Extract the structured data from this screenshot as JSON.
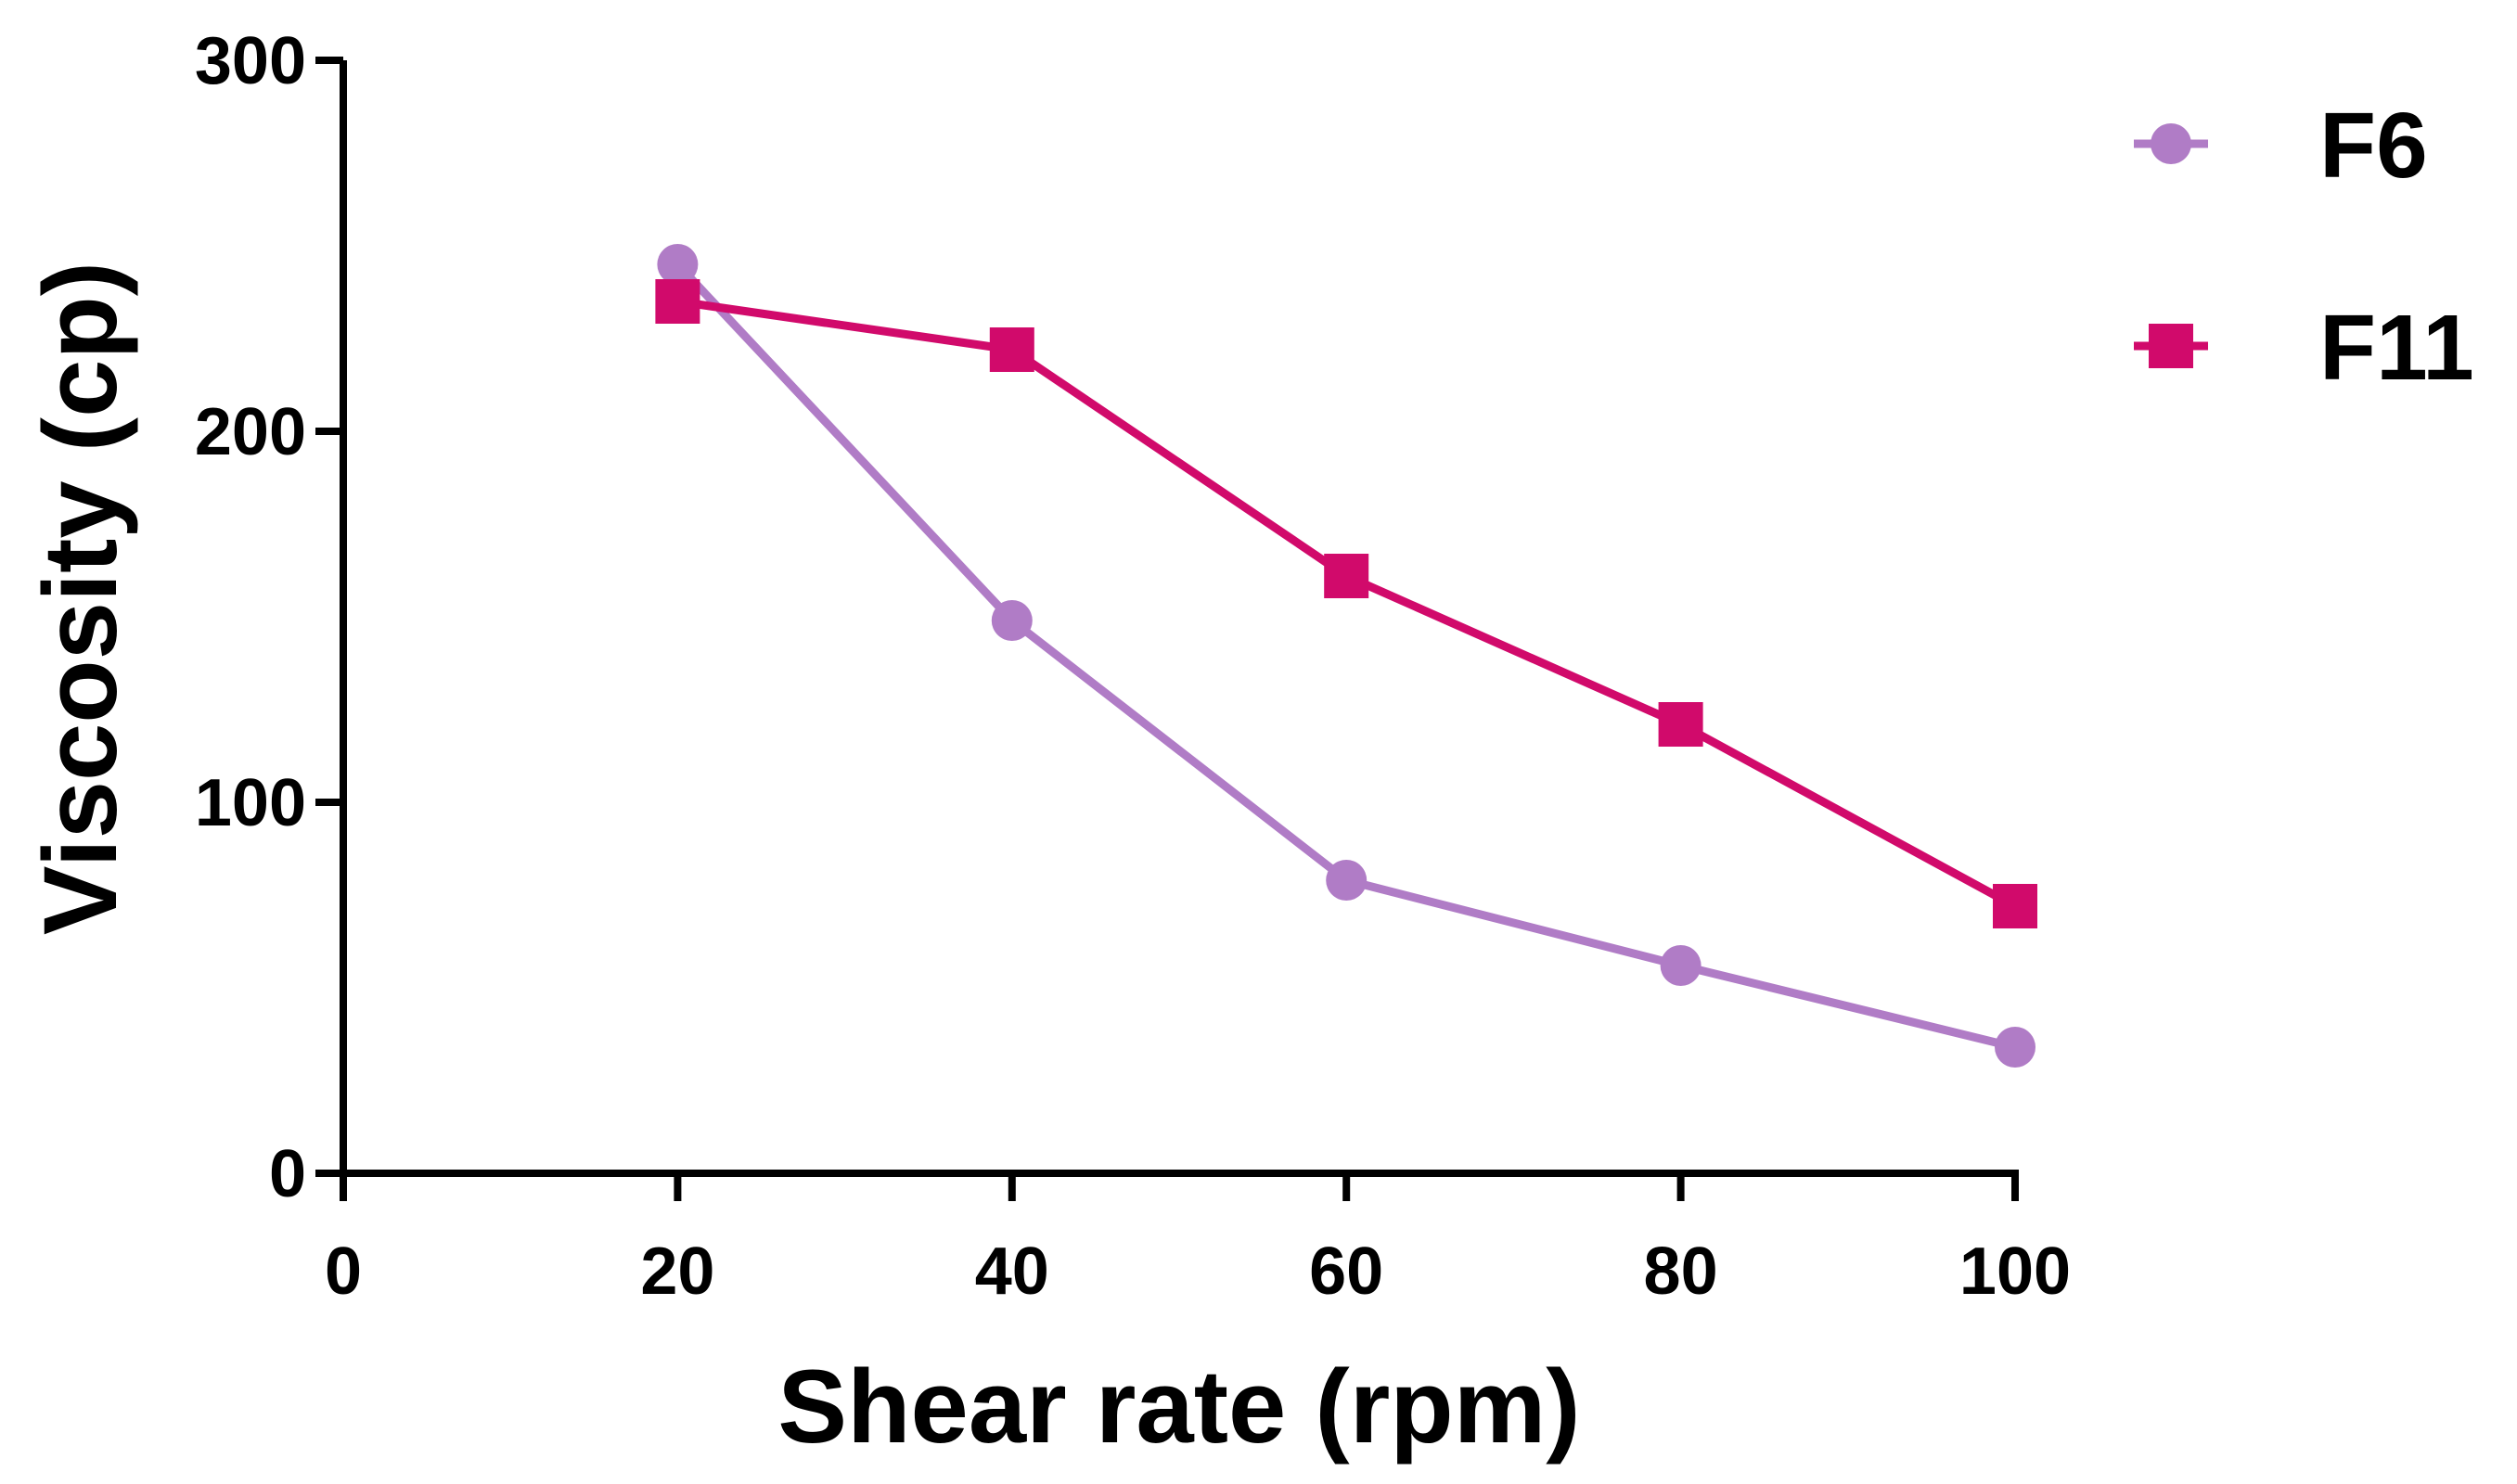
{
  "chart_data": {
    "type": "line",
    "title": "",
    "xlabel": "Shear rate (rpm)",
    "ylabel": "Viscosity (cp)",
    "xlim": [
      0,
      100
    ],
    "ylim": [
      0,
      300
    ],
    "xticks": [
      0,
      20,
      40,
      60,
      80,
      100
    ],
    "yticks": [
      0,
      100,
      200,
      300
    ],
    "xtick_labels": [
      "0",
      "20",
      "40",
      "60",
      "80",
      "100"
    ],
    "ytick_labels": [
      "0",
      "100",
      "200",
      "300"
    ],
    "grid": false,
    "legend_position": "top-right",
    "series": [
      {
        "name": "F6",
        "marker": "circle",
        "color": "#b07cc6",
        "x": [
          20,
          40,
          60,
          80,
          100
        ],
        "y": [
          245,
          149,
          79,
          56,
          34
        ]
      },
      {
        "name": "F11",
        "marker": "square",
        "color": "#d10a6b",
        "x": [
          20,
          40,
          60,
          80,
          100
        ],
        "y": [
          235,
          222,
          161,
          121,
          72
        ]
      }
    ]
  }
}
